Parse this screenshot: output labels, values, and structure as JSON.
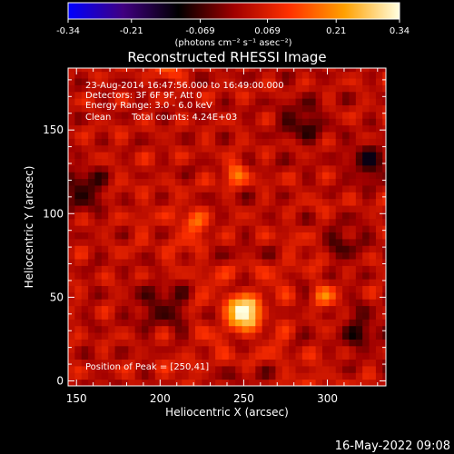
{
  "colorbar": {
    "ticks": [
      -0.34,
      -0.21,
      -0.069,
      0.069,
      0.21,
      0.34
    ],
    "tick_labels": [
      "-0.34",
      "-0.21",
      "-0.069",
      "0.069",
      "0.21",
      "0.34"
    ],
    "units_label": "(photons cm⁻² s⁻¹ asec⁻²)",
    "range": [
      -0.34,
      0.34
    ],
    "colors": [
      "#0000ff",
      "#400080",
      "#000000",
      "#a00000",
      "#ff3000",
      "#ffa000",
      "#ffffe0"
    ]
  },
  "info": {
    "time_range": "23-Aug-2014 16:47:56.000 to 16:49:00.000",
    "detectors": "Detectors: 3F 6F 9F, Att 0",
    "energy": "Energy Range: 3.0 - 6.0 keV",
    "clean": "Clean",
    "counts": "Total counts: 4.24E+03",
    "peak": "Position of Peak = [250,41]"
  },
  "footer": {
    "date": "16-May-2022 09:08"
  },
  "chart_data": {
    "type": "heatmap",
    "title": "Reconstructed RHESSI Image",
    "xlabel": "Heliocentric X (arcsec)",
    "ylabel": "Heliocentric Y (arcsec)",
    "xlim": [
      145,
      335
    ],
    "ylim": [
      -3,
      187
    ],
    "xticks": [
      150,
      200,
      250,
      300
    ],
    "yticks": [
      0,
      50,
      100,
      150
    ],
    "peak": {
      "x": 250,
      "y": 41,
      "value": 0.34
    },
    "secondary_sources": [
      {
        "x": 220,
        "y": 95,
        "value": 0.15
      },
      {
        "x": 245,
        "y": 125,
        "value": 0.14
      },
      {
        "x": 298,
        "y": 50,
        "value": 0.13
      },
      {
        "x": 205,
        "y": 185,
        "value": 0.12
      }
    ],
    "negative_regions": [
      {
        "x": 155,
        "y": 115,
        "value": -0.12
      },
      {
        "x": 285,
        "y": 155,
        "value": -0.1
      },
      {
        "x": 325,
        "y": 130,
        "value": -0.12
      },
      {
        "x": 200,
        "y": 45,
        "value": -0.1
      },
      {
        "x": 320,
        "y": 30,
        "value": -0.09
      },
      {
        "x": 310,
        "y": 85,
        "value": -0.09
      }
    ]
  }
}
